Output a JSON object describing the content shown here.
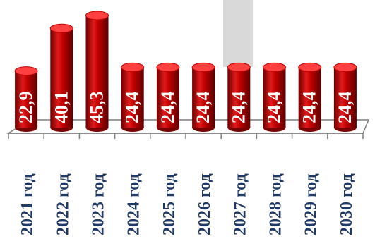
{
  "chart_data": {
    "type": "bar",
    "categories": [
      "2021 год",
      "2022 год",
      "2023 год",
      "2024 год",
      "2025 год",
      "2026 год",
      "2027 год",
      "2028 год",
      "2029 год",
      "2030 год"
    ],
    "values": [
      22.9,
      40.1,
      45.3,
      24.4,
      24.4,
      24.4,
      24.4,
      24.4,
      24.4,
      24.4
    ],
    "value_labels": [
      "22,9",
      "40,1",
      "45,3",
      "24,4",
      "24,4",
      "24,4",
      "24,4",
      "24,4",
      "24,4",
      "24,4"
    ],
    "title": "",
    "xlabel": "",
    "ylabel": "",
    "ylim": [
      0,
      50
    ],
    "bar_shape": "cylinder",
    "grid": false,
    "legend": "none"
  },
  "colors": {
    "bar": "#c00000",
    "bar_dark": "#7a0000",
    "bar_light": "#ff4040",
    "value_text": "#ffffff",
    "category_text": "#1f3864",
    "floor": "#ffffff",
    "floor_edge": "#7f7f7f",
    "backdrop": "#d9d9d9"
  }
}
